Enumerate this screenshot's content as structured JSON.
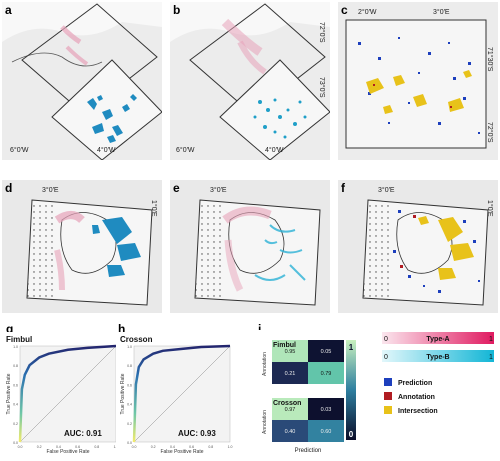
{
  "panels": {
    "a": {
      "label": "a",
      "coords": [
        "6°0'W",
        "4°0'W"
      ]
    },
    "b": {
      "label": "b",
      "coords": [
        "6°0'W",
        "4°0'W",
        "73°0'S",
        "72°0'S"
      ]
    },
    "c": {
      "label": "c",
      "coords": [
        "2°0'W",
        "3°0'E",
        "71°30'S",
        "72°0'S"
      ]
    },
    "d": {
      "label": "d",
      "coords": [
        "3°0'E",
        "1°0'E"
      ]
    },
    "e": {
      "label": "e",
      "coords": [
        "3°0'E"
      ]
    },
    "f": {
      "label": "f",
      "coords": [
        "3°0'E",
        "1°0'E"
      ]
    },
    "g": {
      "label": "g"
    },
    "h": {
      "label": "h"
    },
    "i": {
      "label": "i"
    }
  },
  "roc": {
    "g": {
      "title": "Fimbul",
      "auc": "AUC: 0.91",
      "xlabel": "False Positive Rate",
      "ylabel": "True Positive Rate",
      "yticks": [
        "1.0",
        "0.8",
        "0.6",
        "0.4",
        "0.2",
        "0.0"
      ],
      "xticks": [
        "0.0",
        "0.2",
        "0.4",
        "0.6",
        "0.8",
        "1.0"
      ]
    },
    "h": {
      "title": "Crosson",
      "auc": "AUC: 0.93",
      "xlabel": "False Positive Rate",
      "ylabel": "True Positive Rate",
      "yticks": [
        "1.0",
        "0.8",
        "0.6",
        "0.4",
        "0.2",
        "0.0"
      ],
      "xticks": [
        "0.0",
        "0.2",
        "0.4",
        "0.6",
        "0.8",
        "1.0"
      ]
    }
  },
  "confusion": {
    "xlabel": "Prediction",
    "colorbar": {
      "max": "1",
      "min": "0"
    },
    "blocks": [
      {
        "name": "Fimbul",
        "ylabel": "Annotation",
        "cells": [
          [
            "0.95",
            "0.05"
          ],
          [
            "0.21",
            "0.79"
          ]
        ]
      },
      {
        "name": "Crosson",
        "ylabel": "Annotation",
        "cells": [
          [
            "0.97",
            "0.03"
          ],
          [
            "0.40",
            "0.60"
          ]
        ]
      }
    ]
  },
  "legend": {
    "type_a": {
      "label": "Type-A",
      "min": "0",
      "max": "1"
    },
    "type_b": {
      "label": "Type-B",
      "min": "0",
      "max": "1"
    },
    "items": [
      {
        "label": "Prediction",
        "color": "#1d3fbd"
      },
      {
        "label": "Annotation",
        "color": "#b01c22"
      },
      {
        "label": "Intersection",
        "color": "#e8c21a"
      }
    ]
  },
  "chart_data": [
    {
      "type": "line",
      "title": "Fimbul",
      "xlabel": "False Positive Rate",
      "ylabel": "True Positive Rate",
      "xlim": [
        0,
        1
      ],
      "ylim": [
        0,
        1
      ],
      "auc": 0.91,
      "series": [
        {
          "x": [
            0,
            0.02,
            0.05,
            0.1,
            0.2,
            0.3,
            0.5,
            0.7,
            1.0
          ],
          "y": [
            0,
            0.55,
            0.7,
            0.8,
            0.88,
            0.92,
            0.96,
            0.98,
            1.0
          ]
        }
      ]
    },
    {
      "type": "line",
      "title": "Crosson",
      "xlabel": "False Positive Rate",
      "ylabel": "True Positive Rate",
      "xlim": [
        0,
        1
      ],
      "ylim": [
        0,
        1
      ],
      "auc": 0.93,
      "series": [
        {
          "x": [
            0,
            0.02,
            0.05,
            0.1,
            0.2,
            0.3,
            0.5,
            0.7,
            1.0
          ],
          "y": [
            0,
            0.6,
            0.78,
            0.86,
            0.92,
            0.95,
            0.97,
            0.99,
            1.0
          ]
        }
      ]
    },
    {
      "type": "heatmap",
      "xlabel": "Prediction",
      "ylabel": "Annotation",
      "blocks": [
        {
          "name": "Fimbul",
          "values": [
            [
              0.95,
              0.05
            ],
            [
              0.21,
              0.79
            ]
          ]
        },
        {
          "name": "Crosson",
          "values": [
            [
              0.97,
              0.03
            ],
            [
              0.4,
              0.6
            ]
          ]
        }
      ]
    }
  ]
}
